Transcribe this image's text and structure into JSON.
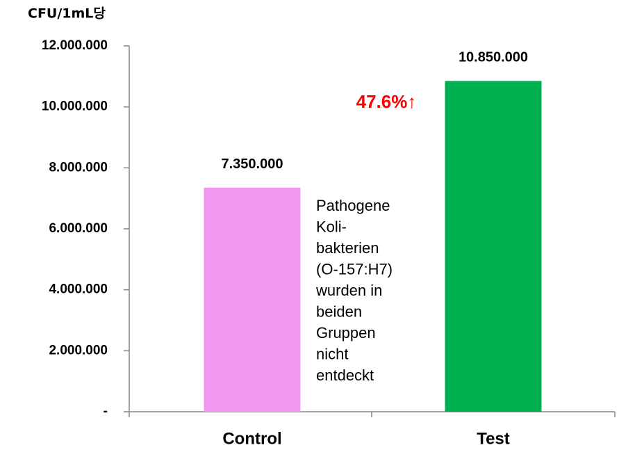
{
  "chart_data": {
    "type": "bar",
    "y_axis_label": "CFU/1mL당",
    "categories": [
      "Control",
      "Test"
    ],
    "values": [
      7350000,
      10850000
    ],
    "value_labels": [
      "7.350.000",
      "10.850.000"
    ],
    "colors": [
      "#f197ef",
      "#00b050"
    ],
    "ylim": [
      0,
      12000000
    ],
    "yticks": [
      {
        "value": 0,
        "label": "-"
      },
      {
        "value": 2000000,
        "label": "2.000.000"
      },
      {
        "value": 4000000,
        "label": "4.000.000"
      },
      {
        "value": 6000000,
        "label": "6.000.000"
      },
      {
        "value": 8000000,
        "label": "8.000.000"
      },
      {
        "value": 10000000,
        "label": "10.000.000"
      },
      {
        "value": 12000000,
        "label": "12.000.000"
      }
    ],
    "increase_annotation": "47.6%↑",
    "note_lines": [
      "Pathogene",
      "Koli-",
      "bakterien",
      "(O-157:H7)",
      "wurden in",
      "beiden",
      "Gruppen",
      "nicht",
      "entdeckt"
    ],
    "grid": false
  }
}
